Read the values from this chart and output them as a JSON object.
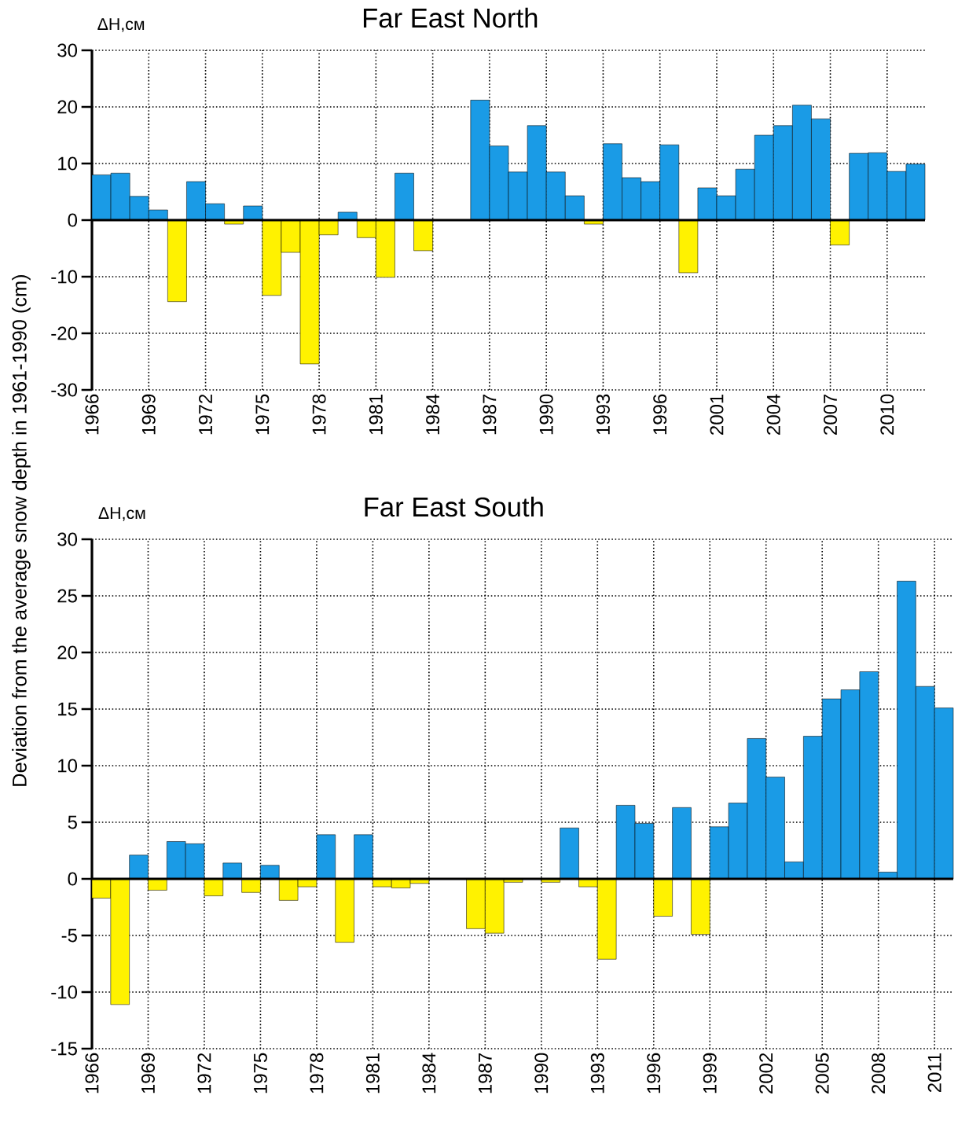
{
  "chart_data": [
    {
      "type": "bar",
      "title": "Far East North",
      "ylabel": "ΔH,см",
      "annotations": [
        "Deviation from the average snow depth in 1961-1990 (cm)"
      ],
      "categories": [
        "1966",
        null,
        null,
        "1969",
        null,
        null,
        "1972",
        null,
        null,
        "1975",
        null,
        null,
        "1978",
        null,
        null,
        "1981",
        null,
        null,
        "1984",
        null,
        null,
        "1987",
        null,
        null,
        "1990",
        null,
        null,
        "1993",
        null,
        null,
        "1996",
        null,
        null,
        "2001",
        null,
        null,
        "2004",
        null,
        null,
        "2007",
        null,
        null,
        "2010",
        null
      ],
      "values": [
        8.0,
        8.3,
        4.2,
        1.8,
        -14.4,
        6.8,
        2.9,
        -0.7,
        2.5,
        -13.3,
        -5.7,
        -25.4,
        -2.6,
        1.4,
        -3.1,
        -10.1,
        8.3,
        -5.4,
        null,
        null,
        21.2,
        13.1,
        8.5,
        16.7,
        8.5,
        4.3,
        -0.7,
        13.5,
        7.5,
        6.8,
        13.3,
        -9.3,
        5.7,
        4.3,
        9.0,
        15.0,
        16.7,
        20.3,
        17.9,
        -4.4,
        11.8,
        11.9,
        8.6,
        9.9
      ],
      "colors": [
        "#1a9be6",
        "#1a9be6",
        "#1a9be6",
        "#1a9be6",
        "#fff200",
        "#1a9be6",
        "#1a9be6",
        "#fff200",
        "#1a9be6",
        "#fff200",
        "#fff200",
        "#fff200",
        "#fff200",
        "#1a9be6",
        "#fff200",
        "#fff200",
        "#1a9be6",
        "#fff200",
        null,
        null,
        "#1a9be6",
        "#1a9be6",
        "#1a9be6",
        "#1a9be6",
        "#1a9be6",
        "#1a9be6",
        "#fff200",
        "#1a9be6",
        "#1a9be6",
        "#1a9be6",
        "#1a9be6",
        "#fff200",
        "#1a9be6",
        "#1a9be6",
        "#1a9be6",
        "#1a9be6",
        "#1a9be6",
        "#1a9be6",
        "#1a9be6",
        "#fff200",
        "#1a9be6",
        "#1a9be6",
        "#1a9be6",
        "#1a9be6"
      ],
      "ylim": [
        -30,
        30
      ],
      "yticks": [
        -30,
        -20,
        -10,
        0,
        10,
        20,
        30
      ],
      "grid": true
    },
    {
      "type": "bar",
      "title": "Far East South",
      "ylabel": "ΔH,см",
      "categories": [
        "1966",
        null,
        null,
        "1969",
        null,
        null,
        "1972",
        null,
        null,
        "1975",
        null,
        null,
        "1978",
        null,
        null,
        "1981",
        null,
        null,
        "1984",
        null,
        null,
        "1987",
        null,
        null,
        "1990",
        null,
        null,
        "1993",
        null,
        null,
        "1996",
        null,
        null,
        "1999",
        null,
        null,
        "2002",
        null,
        null,
        "2005",
        null,
        null,
        "2008",
        null,
        null,
        "2011"
      ],
      "values": [
        -1.7,
        -11.1,
        2.1,
        -1.0,
        3.3,
        3.1,
        -1.5,
        1.4,
        -1.2,
        1.2,
        -1.9,
        -0.7,
        3.9,
        -5.6,
        3.9,
        -0.7,
        -0.8,
        -0.4,
        null,
        null,
        -4.4,
        -4.8,
        -0.3,
        null,
        -0.3,
        4.5,
        -0.7,
        -7.1,
        6.5,
        4.9,
        -3.3,
        6.3,
        -4.9,
        4.6,
        6.7,
        12.4,
        9.0,
        1.5,
        12.6,
        15.9,
        16.7,
        18.3,
        0.6,
        26.3,
        17.0,
        15.1
      ],
      "colors": [
        "#fff200",
        "#fff200",
        "#1a9be6",
        "#fff200",
        "#1a9be6",
        "#1a9be6",
        "#fff200",
        "#1a9be6",
        "#fff200",
        "#1a9be6",
        "#fff200",
        "#fff200",
        "#1a9be6",
        "#fff200",
        "#1a9be6",
        "#fff200",
        "#fff200",
        "#fff200",
        null,
        null,
        "#fff200",
        "#fff200",
        "#fff200",
        null,
        "#fff200",
        "#1a9be6",
        "#fff200",
        "#fff200",
        "#1a9be6",
        "#1a9be6",
        "#fff200",
        "#1a9be6",
        "#fff200",
        "#1a9be6",
        "#1a9be6",
        "#1a9be6",
        "#1a9be6",
        "#1a9be6",
        "#1a9be6",
        "#1a9be6",
        "#1a9be6",
        "#1a9be6",
        "#1a9be6",
        "#1a9be6",
        "#1a9be6",
        "#1a9be6"
      ],
      "ylim": [
        -15,
        30
      ],
      "yticks": [
        -15,
        -10,
        -5,
        0,
        5,
        10,
        15,
        20,
        25,
        30
      ],
      "grid": true
    }
  ]
}
